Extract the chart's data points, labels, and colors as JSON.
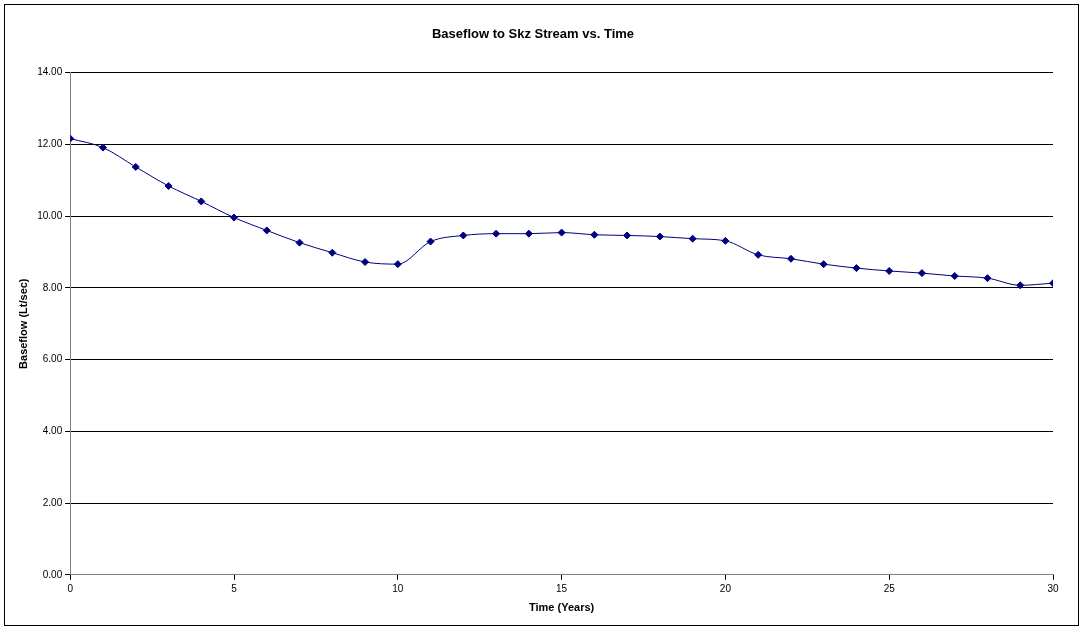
{
  "chart_data": {
    "type": "line",
    "title": "Baseflow to Skz Stream vs. Time",
    "xlabel": "Time (Years)",
    "ylabel": "Baseflow (Lt/sec)",
    "x": [
      0,
      1,
      2,
      3,
      4,
      5,
      6,
      7,
      8,
      9,
      10,
      11,
      12,
      13,
      14,
      15,
      16,
      17,
      18,
      19,
      20,
      21,
      22,
      23,
      24,
      25,
      26,
      27,
      28,
      29,
      30
    ],
    "series": [
      {
        "color": "#000080",
        "values": [
          12.16,
          11.91,
          11.37,
          10.84,
          10.41,
          9.96,
          9.6,
          9.26,
          8.98,
          8.72,
          8.66,
          9.29,
          9.46,
          9.51,
          9.51,
          9.54,
          9.48,
          9.46,
          9.43,
          9.37,
          9.31,
          8.92,
          8.81,
          8.66,
          8.55,
          8.47,
          8.41,
          8.33,
          8.27,
          8.07,
          8.13
        ]
      }
    ],
    "xlim": [
      0,
      30
    ],
    "xticks": [
      0,
      5,
      10,
      15,
      20,
      25,
      30
    ],
    "ylim": [
      0,
      14
    ],
    "yticks": [
      {
        "value": 0,
        "label": "0.00"
      },
      {
        "value": 2,
        "label": "2.00"
      },
      {
        "value": 4,
        "label": "4.00"
      },
      {
        "value": 6,
        "label": "6.00"
      },
      {
        "value": 8,
        "label": "8.00"
      },
      {
        "value": 10,
        "label": "10.00"
      },
      {
        "value": 12,
        "label": "12.00"
      },
      {
        "value": 14,
        "label": "14.00"
      }
    ],
    "grid": "y",
    "legend": false,
    "marker": "diamond",
    "line_style": "solid"
  }
}
